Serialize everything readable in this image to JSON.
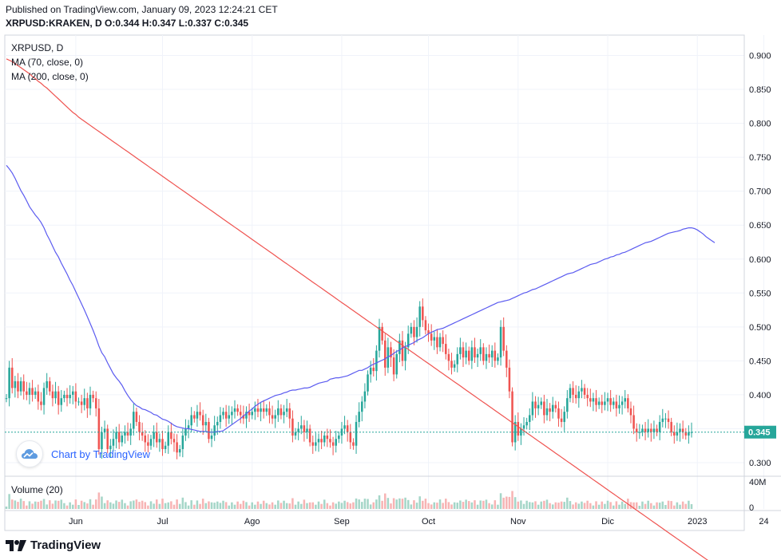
{
  "header": {
    "published": "Published on TradingView.com, January 09, 2023 12:24:21 CET",
    "symbol_line": "XRPUSD:KRAKEN, D O:0.344 H:0.347 L:0.337 C:0.345"
  },
  "legend": {
    "symbol": "XRPUSD, D",
    "ma70": "MA (70, close, 0)",
    "ma200": "MA (200, close, 0)",
    "volume": "Volume (20)"
  },
  "watermark": {
    "text": "Chart by TradingView"
  },
  "footer": {
    "brand": "TradingView"
  },
  "colors": {
    "up": "#26a69a",
    "down": "#ef5350",
    "up_vol": "#a5d6c8",
    "down_vol": "#f7b4b4",
    "ma70": "#5b5bf0",
    "ma200": "#ef5350",
    "last_price_line": "#26a69a",
    "last_price_badge": "#26a69a",
    "grid": "#f0f3fa",
    "axis_text": "#131722"
  },
  "chart_data": {
    "type": "candlestick",
    "price_axis": {
      "ticks": [
        "0.300",
        "0.350",
        "0.400",
        "0.450",
        "0.500",
        "0.550",
        "0.600",
        "0.650",
        "0.700",
        "0.750",
        "0.800",
        "0.850",
        "0.900"
      ],
      "last_price_label": "0.345",
      "ylim": [
        0.28,
        0.93
      ]
    },
    "volume_axis": {
      "ticks": [
        "40M",
        "0"
      ]
    },
    "time_axis": {
      "labels": [
        "Jun",
        "Jul",
        "Ago",
        "Sep",
        "Oct",
        "Nov",
        "Dic",
        "2023",
        "24"
      ],
      "label_index": [
        24,
        54,
        85,
        116,
        146,
        177,
        208,
        239,
        262
      ]
    },
    "last_close": 0.345,
    "closes": [
      0.395,
      0.44,
      0.41,
      0.42,
      0.405,
      0.42,
      0.405,
      0.4,
      0.41,
      0.4,
      0.405,
      0.39,
      0.385,
      0.41,
      0.42,
      0.405,
      0.395,
      0.405,
      0.385,
      0.395,
      0.4,
      0.395,
      0.4,
      0.405,
      0.39,
      0.39,
      0.385,
      0.395,
      0.38,
      0.4,
      0.395,
      0.38,
      0.32,
      0.345,
      0.35,
      0.32,
      0.325,
      0.335,
      0.345,
      0.33,
      0.34,
      0.345,
      0.34,
      0.35,
      0.375,
      0.36,
      0.345,
      0.34,
      0.33,
      0.325,
      0.335,
      0.345,
      0.33,
      0.335,
      0.32,
      0.325,
      0.345,
      0.335,
      0.33,
      0.315,
      0.32,
      0.34,
      0.35,
      0.355,
      0.37,
      0.365,
      0.375,
      0.37,
      0.355,
      0.36,
      0.335,
      0.34,
      0.355,
      0.36,
      0.37,
      0.375,
      0.365,
      0.37,
      0.375,
      0.38,
      0.375,
      0.37,
      0.365,
      0.375,
      0.37,
      0.375,
      0.38,
      0.375,
      0.38,
      0.375,
      0.38,
      0.37,
      0.365,
      0.37,
      0.38,
      0.37,
      0.375,
      0.38,
      0.365,
      0.34,
      0.345,
      0.35,
      0.355,
      0.345,
      0.35,
      0.33,
      0.325,
      0.33,
      0.335,
      0.33,
      0.34,
      0.335,
      0.33,
      0.325,
      0.335,
      0.34,
      0.35,
      0.355,
      0.345,
      0.33,
      0.325,
      0.36,
      0.375,
      0.39,
      0.405,
      0.43,
      0.44,
      0.435,
      0.465,
      0.5,
      0.48,
      0.44,
      0.47,
      0.455,
      0.43,
      0.46,
      0.48,
      0.45,
      0.47,
      0.49,
      0.5,
      0.485,
      0.5,
      0.53,
      0.51,
      0.495,
      0.49,
      0.48,
      0.485,
      0.47,
      0.485,
      0.475,
      0.46,
      0.45,
      0.44,
      0.445,
      0.46,
      0.47,
      0.455,
      0.465,
      0.45,
      0.47,
      0.455,
      0.46,
      0.47,
      0.45,
      0.46,
      0.455,
      0.465,
      0.45,
      0.455,
      0.5,
      0.465,
      0.44,
      0.405,
      0.33,
      0.36,
      0.34,
      0.35,
      0.355,
      0.36,
      0.37,
      0.39,
      0.38,
      0.385,
      0.39,
      0.37,
      0.38,
      0.375,
      0.385,
      0.38,
      0.365,
      0.36,
      0.375,
      0.395,
      0.41,
      0.4,
      0.395,
      0.405,
      0.41,
      0.4,
      0.395,
      0.39,
      0.395,
      0.385,
      0.39,
      0.385,
      0.39,
      0.395,
      0.385,
      0.39,
      0.38,
      0.385,
      0.39,
      0.395,
      0.38,
      0.37,
      0.35,
      0.345,
      0.345,
      0.35,
      0.345,
      0.35,
      0.345,
      0.35,
      0.345,
      0.36,
      0.365,
      0.365,
      0.36,
      0.345,
      0.34,
      0.345,
      0.35,
      0.345,
      0.34,
      0.345,
      0.345
    ],
    "ma70": [
      0.738,
      0.733,
      0.727,
      0.719,
      0.71,
      0.701,
      0.694,
      0.686,
      0.677,
      0.671,
      0.665,
      0.66,
      0.654,
      0.646,
      0.636,
      0.628,
      0.619,
      0.61,
      0.603,
      0.594,
      0.586,
      0.578,
      0.569,
      0.561,
      0.552,
      0.543,
      0.534,
      0.525,
      0.515,
      0.505,
      0.495,
      0.484,
      0.472,
      0.462,
      0.456,
      0.447,
      0.439,
      0.431,
      0.425,
      0.42,
      0.414,
      0.406,
      0.399,
      0.393,
      0.388,
      0.384,
      0.382,
      0.379,
      0.378,
      0.376,
      0.374,
      0.371,
      0.37,
      0.367,
      0.364,
      0.363,
      0.361,
      0.358,
      0.355,
      0.353,
      0.352,
      0.351,
      0.35,
      0.35,
      0.349,
      0.348,
      0.347,
      0.346,
      0.346,
      0.346,
      0.345,
      0.345,
      0.345,
      0.346,
      0.346,
      0.347,
      0.35,
      0.353,
      0.356,
      0.359,
      0.362,
      0.365,
      0.369,
      0.372,
      0.376,
      0.379,
      0.383,
      0.386,
      0.389,
      0.391,
      0.393,
      0.395,
      0.397,
      0.399,
      0.4,
      0.401,
      0.403,
      0.404,
      0.406,
      0.407,
      0.407,
      0.408,
      0.409,
      0.41,
      0.41,
      0.411,
      0.413,
      0.415,
      0.417,
      0.418,
      0.419,
      0.42,
      0.423,
      0.424,
      0.425,
      0.425,
      0.426,
      0.427,
      0.428,
      0.43,
      0.432,
      0.434,
      0.436,
      0.436,
      0.438,
      0.44,
      0.443,
      0.445,
      0.447,
      0.449,
      0.451,
      0.453,
      0.456,
      0.458,
      0.461,
      0.464,
      0.466,
      0.469,
      0.471,
      0.473,
      0.475,
      0.477,
      0.48,
      0.482,
      0.484,
      0.487,
      0.49,
      0.492,
      0.494,
      0.496,
      0.497,
      0.498,
      0.5,
      0.502,
      0.504,
      0.506,
      0.508,
      0.51,
      0.512,
      0.514,
      0.516,
      0.518,
      0.52,
      0.522,
      0.524,
      0.526,
      0.528,
      0.53,
      0.532,
      0.534,
      0.536,
      0.537,
      0.538,
      0.539,
      0.54,
      0.542,
      0.544,
      0.546,
      0.548,
      0.55,
      0.551,
      0.553,
      0.555,
      0.556,
      0.558,
      0.56,
      0.562,
      0.564,
      0.566,
      0.568,
      0.57,
      0.572,
      0.574,
      0.576,
      0.578,
      0.579,
      0.58,
      0.582,
      0.584,
      0.586,
      0.588,
      0.59,
      0.592,
      0.593,
      0.594,
      0.596,
      0.598,
      0.6,
      0.601,
      0.603,
      0.604,
      0.606,
      0.607,
      0.609,
      0.61,
      0.612,
      0.614,
      0.616,
      0.618,
      0.62,
      0.622,
      0.624,
      0.625,
      0.626,
      0.628,
      0.63,
      0.632,
      0.634,
      0.636,
      0.638,
      0.639,
      0.64,
      0.641,
      0.642,
      0.644,
      0.645,
      0.646,
      0.646,
      0.645,
      0.643,
      0.64,
      0.637,
      0.633,
      0.63,
      0.627,
      0.624
    ],
    "ma200": [
      0.895,
      0.893,
      0.891,
      0.888,
      0.885,
      0.882,
      0.879,
      0.876,
      0.873,
      0.869,
      0.866,
      0.862,
      0.859,
      0.855,
      0.852,
      0.848,
      0.844,
      0.84,
      0.836,
      0.832,
      0.828,
      0.824,
      0.82,
      0.816,
      0.813,
      0.809,
      0.806,
      0.803,
      0.8,
      0.797,
      0.794,
      0.791,
      0.788,
      0.785,
      0.782,
      0.779,
      0.776,
      0.773,
      0.77,
      0.767,
      0.764,
      0.761,
      0.758,
      0.755,
      0.752,
      0.749,
      0.746,
      0.743,
      0.74,
      0.737,
      0.734,
      0.731,
      0.728,
      0.725,
      0.722,
      0.719,
      0.716,
      0.713,
      0.71,
      0.707,
      0.704,
      0.701,
      0.698,
      0.695,
      0.692,
      0.689,
      0.686,
      0.683,
      0.68,
      0.677,
      0.674,
      0.671,
      0.668,
      0.665,
      0.662,
      0.659,
      0.656,
      0.653,
      0.65,
      0.647,
      0.644,
      0.641,
      0.638,
      0.635,
      0.632,
      0.629,
      0.626,
      0.623,
      0.62,
      0.617,
      0.614,
      0.611,
      0.608,
      0.605,
      0.602,
      0.599,
      0.596,
      0.593,
      0.59,
      0.587,
      0.584,
      0.581,
      0.578,
      0.575,
      0.572,
      0.569,
      0.566,
      0.563,
      0.56,
      0.557,
      0.554,
      0.551,
      0.548,
      0.545,
      0.542,
      0.539,
      0.536,
      0.533,
      0.53,
      0.527,
      0.524,
      0.521,
      0.518,
      0.515,
      0.512,
      0.509,
      0.506,
      0.503,
      0.5,
      0.497,
      0.494,
      0.491,
      0.488,
      0.485,
      0.482,
      0.479,
      0.476,
      0.473,
      0.47,
      0.467,
      0.464,
      0.461,
      0.458,
      0.455,
      0.452,
      0.449,
      0.446,
      0.443,
      0.44,
      0.437,
      0.434,
      0.431,
      0.428,
      0.425,
      0.422,
      0.419,
      0.416,
      0.413,
      0.41,
      0.407,
      0.404,
      0.401,
      0.398,
      0.395,
      0.392,
      0.389,
      0.386,
      0.383,
      0.38,
      0.377,
      0.374,
      0.371,
      0.368,
      0.365,
      0.362,
      0.359,
      0.356,
      0.353,
      0.35,
      0.347,
      0.344,
      0.341,
      0.338,
      0.335,
      0.332,
      0.329,
      0.326,
      0.323,
      0.32,
      0.317,
      0.314,
      0.311,
      0.308,
      0.305,
      0.302,
      0.299,
      0.296,
      0.293,
      0.29,
      0.287,
      0.284,
      0.281,
      0.278,
      0.275,
      0.272,
      0.269,
      0.266,
      0.263,
      0.26,
      0.257,
      0.254,
      0.251,
      0.248,
      0.245,
      0.242,
      0.239,
      0.236,
      0.233,
      0.23,
      0.227,
      0.224,
      0.221,
      0.218,
      0.215,
      0.212,
      0.209,
      0.206,
      0.203,
      0.2,
      0.197,
      0.194,
      0.191,
      0.188,
      0.185,
      0.182,
      0.179,
      0.176,
      0.173,
      0.17,
      0.167,
      0.164,
      0.161,
      0.158,
      0.155,
      0.152,
      0.149,
      0.146,
      0.143
    ]
  }
}
